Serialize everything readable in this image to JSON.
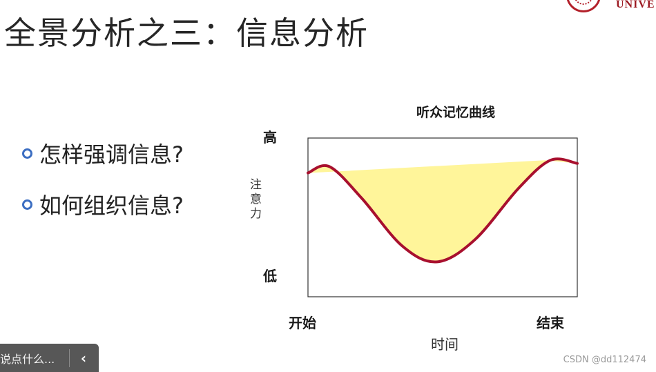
{
  "slide": {
    "title": "全景分析之三：信息分析",
    "logo_text": "UNIVE",
    "bullets": [
      "怎样强调信息?",
      "如何组织信息?"
    ]
  },
  "chart_data": {
    "type": "line",
    "title": "听众记忆曲线",
    "y_high_label": "高",
    "y_low_label": "低",
    "ylabel": "注意力",
    "x_start_label": "开始",
    "x_end_label": "结束",
    "xlabel": "时间",
    "series": [
      {
        "x": [
          0,
          0.08,
          0.2,
          0.35,
          0.48,
          0.62,
          0.78,
          0.9,
          1.0
        ],
        "y": [
          0.78,
          0.82,
          0.62,
          0.32,
          0.22,
          0.36,
          0.68,
          0.86,
          0.84
        ]
      }
    ],
    "highlight_band": {
      "start_y": 0.78,
      "end_y": 0.86
    },
    "colors": {
      "curve": "#a8102e",
      "fill": "#fff59a",
      "frame": "#333333"
    }
  },
  "ui": {
    "comment_placeholder": "说点什么...",
    "collapse_icon": "chevron-left-icon",
    "watermark": "CSDN @dd112474"
  }
}
